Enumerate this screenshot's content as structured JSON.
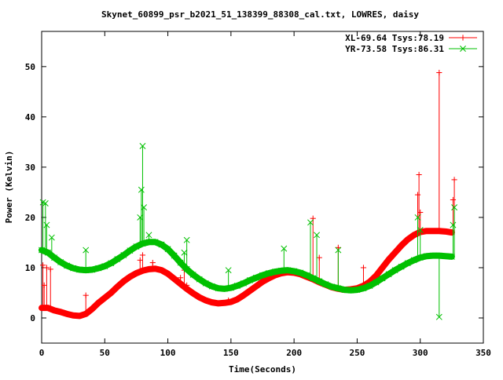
{
  "chart_data": {
    "type": "line",
    "title": "Skynet_60899_psr_b2021_51_138399_88308_cal.txt, LOWRES, daisy",
    "xlabel": "Time(Seconds)",
    "ylabel": "Power (Kelvin)",
    "xlim": [
      0,
      350
    ],
    "ylim": [
      -5,
      57
    ],
    "xticks": [
      0,
      50,
      100,
      150,
      200,
      250,
      300,
      350
    ],
    "yticks": [
      0,
      10,
      20,
      30,
      40,
      50
    ],
    "grid": false,
    "legend_position": "top-right",
    "series": [
      {
        "name": "XL-69.64 Tsys:78.19",
        "color": "#ff0000",
        "marker": "+",
        "points": [
          [
            0,
            2.0
          ],
          [
            5,
            2.0
          ],
          [
            10,
            1.5
          ],
          [
            15,
            1.2
          ],
          [
            20,
            0.8
          ],
          [
            25,
            0.5
          ],
          [
            30,
            0.4
          ],
          [
            35,
            0.8
          ],
          [
            40,
            1.8
          ],
          [
            45,
            3.0
          ],
          [
            50,
            4.0
          ],
          [
            55,
            5.0
          ],
          [
            60,
            6.2
          ],
          [
            65,
            7.3
          ],
          [
            70,
            8.2
          ],
          [
            75,
            8.9
          ],
          [
            80,
            9.4
          ],
          [
            85,
            9.7
          ],
          [
            90,
            9.8
          ],
          [
            95,
            9.5
          ],
          [
            100,
            8.8
          ],
          [
            105,
            7.8
          ],
          [
            110,
            6.8
          ],
          [
            115,
            5.8
          ],
          [
            120,
            4.9
          ],
          [
            125,
            4.1
          ],
          [
            130,
            3.5
          ],
          [
            135,
            3.1
          ],
          [
            140,
            2.9
          ],
          [
            145,
            3.0
          ],
          [
            150,
            3.2
          ],
          [
            155,
            3.7
          ],
          [
            160,
            4.5
          ],
          [
            165,
            5.4
          ],
          [
            170,
            6.3
          ],
          [
            175,
            7.2
          ],
          [
            180,
            7.9
          ],
          [
            185,
            8.5
          ],
          [
            190,
            8.9
          ],
          [
            195,
            9.1
          ],
          [
            200,
            9.0
          ],
          [
            205,
            8.7
          ],
          [
            210,
            8.2
          ],
          [
            215,
            7.7
          ],
          [
            220,
            7.1
          ],
          [
            225,
            6.6
          ],
          [
            230,
            6.1
          ],
          [
            235,
            5.8
          ],
          [
            240,
            5.6
          ],
          [
            245,
            5.7
          ],
          [
            250,
            5.9
          ],
          [
            255,
            6.4
          ],
          [
            260,
            7.2
          ],
          [
            265,
            8.4
          ],
          [
            270,
            10.0
          ],
          [
            275,
            11.6
          ],
          [
            280,
            13.0
          ],
          [
            285,
            14.4
          ],
          [
            290,
            15.6
          ],
          [
            295,
            16.5
          ],
          [
            300,
            17.1
          ],
          [
            305,
            17.3
          ],
          [
            310,
            17.3
          ],
          [
            315,
            17.3
          ],
          [
            320,
            17.2
          ],
          [
            325,
            17.0
          ]
        ],
        "spikes": [
          [
            1,
            10.5
          ],
          [
            2,
            6.5
          ],
          [
            4,
            10.0
          ],
          [
            7,
            9.7
          ],
          [
            35,
            4.5
          ],
          [
            78,
            11.5
          ],
          [
            80,
            12.5
          ],
          [
            88,
            11.0
          ],
          [
            110,
            8.0
          ],
          [
            113,
            9.5
          ],
          [
            115,
            6.5
          ],
          [
            148,
            3.5
          ],
          [
            215,
            19.8
          ],
          [
            220,
            12.0
          ],
          [
            235,
            14.0
          ],
          [
            255,
            10.0
          ],
          [
            298,
            24.5
          ],
          [
            299,
            28.5
          ],
          [
            300,
            21.0
          ],
          [
            315,
            48.8
          ],
          [
            327,
            27.5
          ],
          [
            326,
            23.5
          ]
        ]
      },
      {
        "name": "YR-73.58 Tsys:86.31",
        "color": "#00c000",
        "marker": "x",
        "points": [
          [
            0,
            13.5
          ],
          [
            5,
            13.0
          ],
          [
            10,
            12.0
          ],
          [
            15,
            11.1
          ],
          [
            20,
            10.4
          ],
          [
            25,
            9.9
          ],
          [
            30,
            9.6
          ],
          [
            35,
            9.5
          ],
          [
            40,
            9.6
          ],
          [
            45,
            9.9
          ],
          [
            50,
            10.3
          ],
          [
            55,
            10.9
          ],
          [
            60,
            11.7
          ],
          [
            65,
            12.5
          ],
          [
            70,
            13.4
          ],
          [
            75,
            14.2
          ],
          [
            80,
            14.8
          ],
          [
            85,
            15.1
          ],
          [
            90,
            15.1
          ],
          [
            95,
            14.6
          ],
          [
            100,
            13.7
          ],
          [
            105,
            12.4
          ],
          [
            110,
            11.0
          ],
          [
            115,
            9.7
          ],
          [
            120,
            8.6
          ],
          [
            125,
            7.7
          ],
          [
            130,
            6.9
          ],
          [
            135,
            6.3
          ],
          [
            140,
            5.9
          ],
          [
            145,
            5.8
          ],
          [
            150,
            6.0
          ],
          [
            155,
            6.4
          ],
          [
            160,
            6.9
          ],
          [
            165,
            7.5
          ],
          [
            170,
            8.0
          ],
          [
            175,
            8.5
          ],
          [
            180,
            8.9
          ],
          [
            185,
            9.2
          ],
          [
            190,
            9.4
          ],
          [
            195,
            9.5
          ],
          [
            200,
            9.3
          ],
          [
            205,
            9.0
          ],
          [
            210,
            8.5
          ],
          [
            215,
            7.9
          ],
          [
            220,
            7.3
          ],
          [
            225,
            6.7
          ],
          [
            230,
            6.2
          ],
          [
            235,
            5.9
          ],
          [
            240,
            5.6
          ],
          [
            245,
            5.5
          ],
          [
            250,
            5.6
          ],
          [
            255,
            5.9
          ],
          [
            260,
            6.4
          ],
          [
            265,
            7.1
          ],
          [
            270,
            7.9
          ],
          [
            275,
            8.7
          ],
          [
            280,
            9.5
          ],
          [
            285,
            10.2
          ],
          [
            290,
            10.9
          ],
          [
            295,
            11.5
          ],
          [
            300,
            12.0
          ],
          [
            305,
            12.3
          ],
          [
            310,
            12.4
          ],
          [
            315,
            12.4
          ],
          [
            320,
            12.3
          ],
          [
            325,
            12.2
          ]
        ],
        "spikes": [
          [
            1,
            23.0
          ],
          [
            3,
            22.8
          ],
          [
            4,
            18.5
          ],
          [
            8,
            16.0
          ],
          [
            35,
            13.5
          ],
          [
            78,
            20.0
          ],
          [
            79,
            25.5
          ],
          [
            80,
            34.2
          ],
          [
            81,
            22.0
          ],
          [
            85,
            16.5
          ],
          [
            113,
            13.0
          ],
          [
            115,
            15.5
          ],
          [
            148,
            9.5
          ],
          [
            192,
            13.8
          ],
          [
            213,
            19.0
          ],
          [
            218,
            16.5
          ],
          [
            235,
            13.5
          ],
          [
            298,
            20.0
          ],
          [
            300,
            17.5
          ],
          [
            315,
            0.2
          ],
          [
            326,
            18.5
          ],
          [
            327,
            22.0
          ]
        ]
      }
    ]
  }
}
